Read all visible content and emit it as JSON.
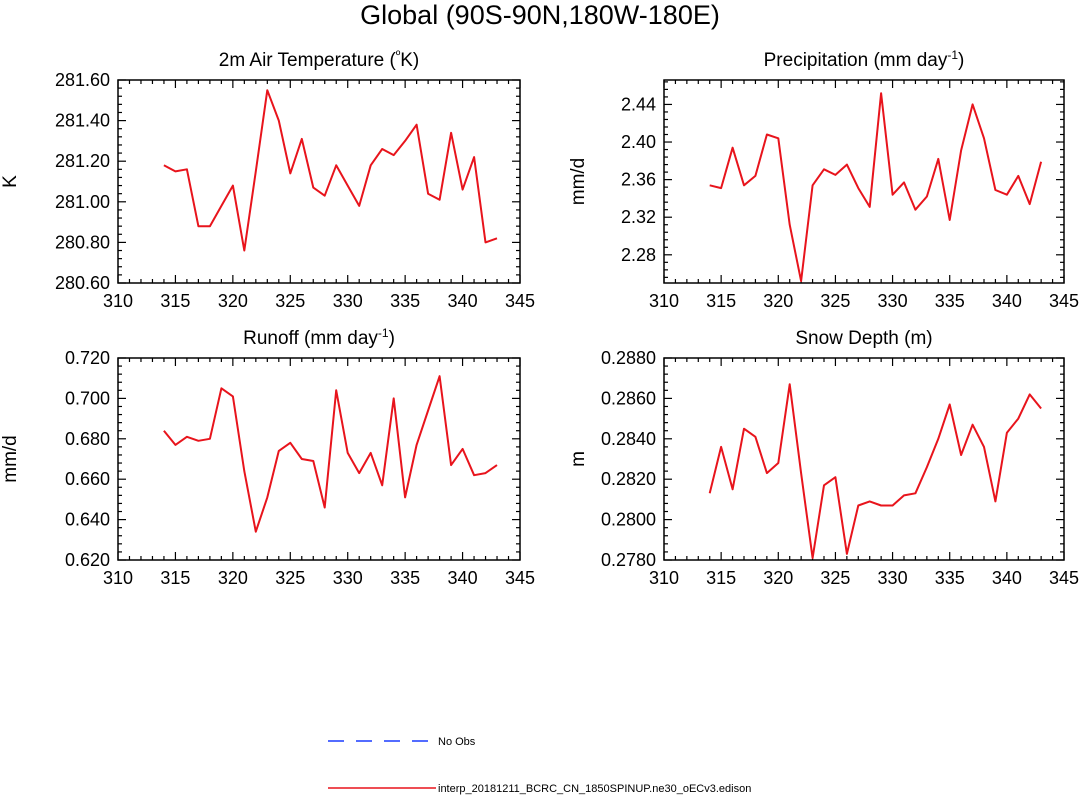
{
  "figure": {
    "title": "Global (90S-90N,180W-180E)"
  },
  "legend": [
    {
      "label": "No Obs",
      "color": "#1a3cff",
      "dashed": true
    },
    {
      "label": "interp_20181211_BCRC_CN_1850SPINUP.ne30_oECv3.edison",
      "color": "#e8141c",
      "dashed": false
    }
  ],
  "chart_data": [
    {
      "type": "line",
      "title": "2m Air Temperature",
      "title_units": "(ºK)",
      "ylabel": "K",
      "xlim": [
        310,
        345
      ],
      "xticks": [
        310,
        315,
        320,
        325,
        330,
        335,
        340,
        345
      ],
      "ylim": [
        280.6,
        281.6
      ],
      "yticks": [
        280.6,
        280.8,
        281.0,
        281.2,
        281.4,
        281.6
      ],
      "ytick_labels": [
        "280.60",
        "280.80",
        "281.00",
        "281.20",
        "281.40",
        "281.60"
      ],
      "x": [
        314,
        315,
        316,
        317,
        318,
        319,
        320,
        321,
        322,
        323,
        324,
        325,
        326,
        327,
        328,
        329,
        330,
        331,
        332,
        333,
        334,
        335,
        336,
        337,
        338,
        339,
        340,
        341,
        342,
        343
      ],
      "series": [
        {
          "name": "interp_20181211_BCRC_CN_1850SPINUP.ne30_oECv3.edison",
          "color": "#e8141c",
          "values": [
            281.18,
            281.15,
            281.16,
            280.88,
            280.88,
            280.98,
            281.08,
            280.76,
            281.15,
            281.55,
            281.4,
            281.14,
            281.31,
            281.07,
            281.03,
            281.18,
            281.08,
            280.98,
            281.18,
            281.26,
            281.23,
            281.3,
            281.38,
            281.04,
            281.01,
            281.34,
            281.06,
            281.22,
            280.8,
            280.82
          ]
        }
      ]
    },
    {
      "type": "line",
      "title": "Precipitation (mm day",
      "title_sup": "-1",
      "title_tail": ")",
      "ylabel": "mm/d",
      "xlim": [
        310,
        345
      ],
      "xticks": [
        310,
        315,
        320,
        325,
        330,
        335,
        340,
        345
      ],
      "ylim": [
        2.25,
        2.466
      ],
      "yticks": [
        2.28,
        2.32,
        2.36,
        2.4,
        2.44
      ],
      "ytick_labels": [
        "2.28",
        "2.32",
        "2.36",
        "2.40",
        "2.44"
      ],
      "x": [
        314,
        315,
        316,
        317,
        318,
        319,
        320,
        321,
        322,
        323,
        324,
        325,
        326,
        327,
        328,
        329,
        330,
        331,
        332,
        333,
        334,
        335,
        336,
        337,
        338,
        339,
        340,
        341,
        342,
        343
      ],
      "series": [
        {
          "name": "interp_20181211_BCRC_CN_1850SPINUP.ne30_oECv3.edison",
          "color": "#e8141c",
          "values": [
            2.354,
            2.351,
            2.394,
            2.354,
            2.364,
            2.408,
            2.404,
            2.312,
            2.252,
            2.354,
            2.371,
            2.365,
            2.376,
            2.351,
            2.331,
            2.452,
            2.344,
            2.357,
            2.328,
            2.342,
            2.382,
            2.317,
            2.391,
            2.44,
            2.404,
            2.349,
            2.344,
            2.364,
            2.334,
            2.379
          ]
        }
      ]
    },
    {
      "type": "line",
      "title": "Runoff (mm day",
      "title_sup": "-1",
      "title_tail": ")",
      "ylabel": "mm/d",
      "xlim": [
        310,
        345
      ],
      "xticks": [
        310,
        315,
        320,
        325,
        330,
        335,
        340,
        345
      ],
      "ylim": [
        0.62,
        0.72
      ],
      "yticks": [
        0.62,
        0.64,
        0.66,
        0.68,
        0.7,
        0.72
      ],
      "ytick_labels": [
        "0.620",
        "0.640",
        "0.660",
        "0.680",
        "0.700",
        "0.720"
      ],
      "x": [
        314,
        315,
        316,
        317,
        318,
        319,
        320,
        321,
        322,
        323,
        324,
        325,
        326,
        327,
        328,
        329,
        330,
        331,
        332,
        333,
        334,
        335,
        336,
        337,
        338,
        339,
        340,
        341,
        342,
        343
      ],
      "series": [
        {
          "name": "interp_20181211_BCRC_CN_1850SPINUP.ne30_oECv3.edison",
          "color": "#e8141c",
          "values": [
            0.684,
            0.677,
            0.681,
            0.679,
            0.68,
            0.705,
            0.701,
            0.664,
            0.634,
            0.651,
            0.674,
            0.678,
            0.67,
            0.669,
            0.646,
            0.704,
            0.673,
            0.663,
            0.673,
            0.657,
            0.7,
            0.651,
            0.677,
            0.694,
            0.711,
            0.667,
            0.675,
            0.662,
            0.663,
            0.667
          ]
        }
      ]
    },
    {
      "type": "line",
      "title": "Snow Depth (m)",
      "ylabel": "m",
      "xlim": [
        310,
        345
      ],
      "xticks": [
        310,
        315,
        320,
        325,
        330,
        335,
        340,
        345
      ],
      "ylim": [
        0.278,
        0.288
      ],
      "yticks": [
        0.278,
        0.28,
        0.282,
        0.284,
        0.286,
        0.288
      ],
      "ytick_labels": [
        "0.2780",
        "0.2800",
        "0.2820",
        "0.2840",
        "0.2860",
        "0.2880"
      ],
      "x": [
        314,
        315,
        316,
        317,
        318,
        319,
        320,
        321,
        322,
        323,
        324,
        325,
        326,
        327,
        328,
        329,
        330,
        331,
        332,
        333,
        334,
        335,
        336,
        337,
        338,
        339,
        340,
        341,
        342,
        343
      ],
      "series": [
        {
          "name": "interp_20181211_BCRC_CN_1850SPINUP.ne30_oECv3.edison",
          "color": "#e8141c",
          "values": [
            0.2813,
            0.2836,
            0.2815,
            0.2845,
            0.2841,
            0.2823,
            0.2828,
            0.2867,
            0.2823,
            0.2781,
            0.2817,
            0.2821,
            0.2783,
            0.2807,
            0.2809,
            0.2807,
            0.2807,
            0.2812,
            0.2813,
            0.2826,
            0.284,
            0.2857,
            0.2832,
            0.2847,
            0.2836,
            0.2809,
            0.2843,
            0.285,
            0.2862,
            0.2855
          ]
        }
      ]
    }
  ]
}
